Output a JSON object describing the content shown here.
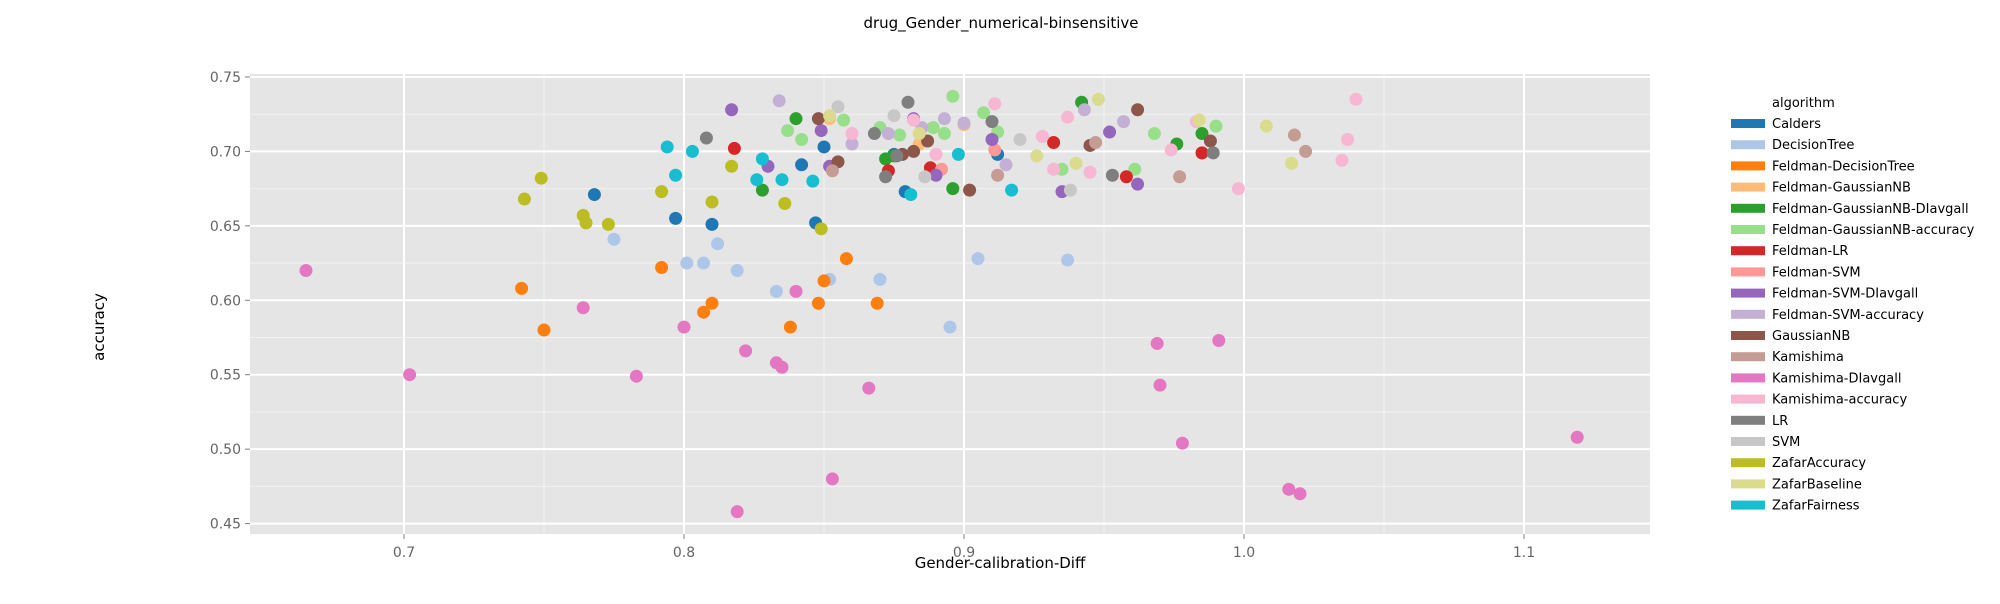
{
  "chart_data": {
    "type": "scatter",
    "title": "drug_Gender_numerical-binsensitive",
    "xlabel": "Gender-calibration-Diff",
    "ylabel": "accuracy",
    "xlim": [
      0.645,
      1.145
    ],
    "ylim": [
      0.443,
      0.752
    ],
    "xticks": [
      0.7,
      0.8,
      0.9,
      1.0,
      1.1
    ],
    "xtick_labels": [
      "0.7",
      "0.8",
      "0.9",
      "1.0",
      "1.1"
    ],
    "yticks": [
      0.45,
      0.5,
      0.55,
      0.6,
      0.65,
      0.7,
      0.75
    ],
    "ytick_labels": [
      "0.45",
      "0.50",
      "0.55",
      "0.60",
      "0.65",
      "0.70",
      "0.75"
    ],
    "grid": true,
    "legend_title": "algorithm",
    "legend_position": "right",
    "series": [
      {
        "name": "Calders",
        "color": "#1f77b4",
        "x": [
          0.768,
          0.797,
          0.81,
          0.842,
          0.847,
          0.875,
          0.879,
          0.912,
          0.85
        ],
        "y": [
          0.671,
          0.655,
          0.651,
          0.691,
          0.652,
          0.698,
          0.673,
          0.698,
          0.703
        ]
      },
      {
        "name": "DecisionTree",
        "color": "#aec7e8",
        "x": [
          0.775,
          0.801,
          0.807,
          0.812,
          0.819,
          0.833,
          0.852,
          0.87,
          0.895,
          0.905,
          0.937
        ],
        "y": [
          0.641,
          0.625,
          0.625,
          0.638,
          0.62,
          0.606,
          0.614,
          0.614,
          0.582,
          0.628,
          0.627
        ]
      },
      {
        "name": "Feldman-DecisionTree",
        "color": "#ff7f0e",
        "x": [
          0.742,
          0.75,
          0.792,
          0.807,
          0.81,
          0.838,
          0.848,
          0.85,
          0.858,
          0.869
        ],
        "y": [
          0.608,
          0.58,
          0.622,
          0.592,
          0.598,
          0.582,
          0.598,
          0.613,
          0.628,
          0.598
        ]
      },
      {
        "name": "Feldman-GaussianNB",
        "color": "#ffbb78",
        "x": [
          0.852,
          0.884,
          0.9
        ],
        "y": [
          0.722,
          0.705,
          0.718
        ]
      },
      {
        "name": "Feldman-GaussianNB-DIavgall",
        "color": "#2ca02c",
        "x": [
          0.828,
          0.84,
          0.872,
          0.875,
          0.896,
          0.942,
          0.976,
          0.985
        ],
        "y": [
          0.674,
          0.722,
          0.695,
          0.697,
          0.675,
          0.733,
          0.705,
          0.712
        ]
      },
      {
        "name": "Feldman-GaussianNB-accuracy",
        "color": "#98df8a",
        "x": [
          0.837,
          0.842,
          0.857,
          0.87,
          0.877,
          0.889,
          0.893,
          0.896,
          0.907,
          0.912,
          0.935,
          0.961,
          0.968,
          0.99
        ],
        "y": [
          0.714,
          0.708,
          0.721,
          0.716,
          0.711,
          0.716,
          0.712,
          0.737,
          0.726,
          0.713,
          0.688,
          0.688,
          0.712,
          0.717
        ]
      },
      {
        "name": "Feldman-LR",
        "color": "#d62728",
        "x": [
          0.818,
          0.873,
          0.888,
          0.932,
          0.958,
          0.985
        ],
        "y": [
          0.702,
          0.687,
          0.689,
          0.706,
          0.683,
          0.699
        ]
      },
      {
        "name": "Feldman-SVM",
        "color": "#ff9896",
        "x": [
          0.892,
          0.911
        ],
        "y": [
          0.688,
          0.701
        ]
      },
      {
        "name": "Feldman-SVM-DIavgall",
        "color": "#9467bd",
        "x": [
          0.817,
          0.83,
          0.849,
          0.852,
          0.882,
          0.89,
          0.91,
          0.935,
          0.952,
          0.962
        ],
        "y": [
          0.728,
          0.69,
          0.714,
          0.69,
          0.722,
          0.684,
          0.708,
          0.673,
          0.713,
          0.678
        ]
      },
      {
        "name": "Feldman-SVM-accuracy",
        "color": "#c5b0d5",
        "x": [
          0.834,
          0.86,
          0.873,
          0.885,
          0.893,
          0.9,
          0.915,
          0.943,
          0.957
        ],
        "y": [
          0.734,
          0.705,
          0.712,
          0.716,
          0.722,
          0.719,
          0.691,
          0.728,
          0.72
        ]
      },
      {
        "name": "GaussianNB",
        "color": "#8c564b",
        "x": [
          0.848,
          0.855,
          0.878,
          0.882,
          0.887,
          0.902,
          0.945,
          0.962,
          0.988
        ],
        "y": [
          0.722,
          0.693,
          0.698,
          0.7,
          0.707,
          0.674,
          0.704,
          0.728,
          0.707
        ]
      },
      {
        "name": "Kamishima",
        "color": "#c49c94",
        "x": [
          0.853,
          0.912,
          0.947,
          0.977,
          1.018,
          1.022
        ],
        "y": [
          0.687,
          0.684,
          0.706,
          0.683,
          0.711,
          0.7
        ]
      },
      {
        "name": "Kamishima-DIavgall",
        "color": "#e377c2",
        "x": [
          0.665,
          0.702,
          0.764,
          0.783,
          0.8,
          0.822,
          0.833,
          0.835,
          0.84,
          0.853,
          0.866,
          0.969,
          0.97,
          0.978,
          0.991,
          1.016,
          1.02,
          1.119,
          0.819
        ],
        "y": [
          0.62,
          0.55,
          0.595,
          0.549,
          0.582,
          0.566,
          0.558,
          0.555,
          0.606,
          0.48,
          0.541,
          0.571,
          0.543,
          0.504,
          0.573,
          0.473,
          0.47,
          0.508,
          0.458
        ]
      },
      {
        "name": "Kamishima-accuracy",
        "color": "#f7b6d2",
        "x": [
          0.86,
          0.882,
          0.89,
          0.911,
          0.928,
          0.932,
          0.937,
          0.945,
          0.974,
          0.983,
          0.998,
          1.035,
          1.037,
          1.04
        ],
        "y": [
          0.712,
          0.721,
          0.698,
          0.732,
          0.71,
          0.688,
          0.723,
          0.686,
          0.701,
          0.72,
          0.675,
          0.694,
          0.708,
          0.735
        ]
      },
      {
        "name": "LR",
        "color": "#7f7f7f",
        "x": [
          0.808,
          0.868,
          0.872,
          0.876,
          0.88,
          0.91,
          0.953,
          0.989
        ],
        "y": [
          0.709,
          0.712,
          0.683,
          0.697,
          0.733,
          0.72,
          0.684,
          0.699
        ]
      },
      {
        "name": "SVM",
        "color": "#c7c7c7",
        "x": [
          0.855,
          0.875,
          0.886,
          0.92,
          0.938
        ],
        "y": [
          0.73,
          0.724,
          0.683,
          0.708,
          0.674
        ]
      },
      {
        "name": "ZafarAccuracy",
        "color": "#bcbd22",
        "x": [
          0.743,
          0.749,
          0.764,
          0.765,
          0.773,
          0.792,
          0.81,
          0.817,
          0.836,
          0.849
        ],
        "y": [
          0.668,
          0.682,
          0.657,
          0.652,
          0.651,
          0.673,
          0.666,
          0.69,
          0.665,
          0.648
        ]
      },
      {
        "name": "ZafarBaseline",
        "color": "#dbdb8d",
        "x": [
          0.852,
          0.884,
          0.926,
          0.94,
          0.948,
          0.984,
          1.008,
          1.017
        ],
        "y": [
          0.724,
          0.712,
          0.697,
          0.692,
          0.735,
          0.721,
          0.717,
          0.692
        ]
      },
      {
        "name": "ZafarFairness",
        "color": "#17becf",
        "x": [
          0.794,
          0.797,
          0.803,
          0.826,
          0.828,
          0.835,
          0.846,
          0.881,
          0.898,
          0.917
        ],
        "y": [
          0.703,
          0.684,
          0.7,
          0.681,
          0.695,
          0.681,
          0.68,
          0.671,
          0.698,
          0.674
        ]
      }
    ]
  }
}
